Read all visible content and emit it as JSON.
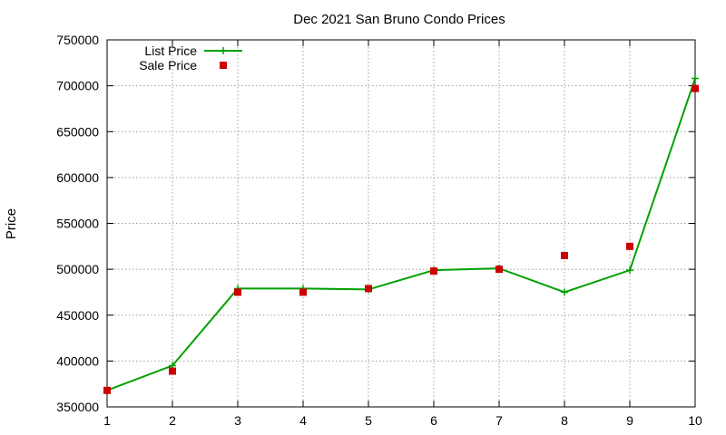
{
  "chart_data": {
    "type": "line",
    "title": "Dec 2021 San Bruno Condo Prices",
    "xlabel": "",
    "ylabel": "Price",
    "x": [
      1,
      2,
      3,
      4,
      5,
      6,
      7,
      8,
      9,
      10
    ],
    "xlim": [
      1,
      10
    ],
    "ylim": [
      350000,
      750000
    ],
    "xticks": [
      "1",
      "2",
      "3",
      "4",
      "5",
      "6",
      "7",
      "8",
      "9",
      "10"
    ],
    "yticks": [
      "350000",
      "400000",
      "450000",
      "500000",
      "550000",
      "600000",
      "650000",
      "700000",
      "750000"
    ],
    "grid": true,
    "legend_position": "top-left",
    "series": [
      {
        "name": "List Price",
        "kind": "line+cross",
        "color": "#00a000",
        "values": [
          368000,
          395000,
          479000,
          479000,
          478000,
          499000,
          501000,
          475000,
          499000,
          708000
        ]
      },
      {
        "name": "Sale Price",
        "kind": "square",
        "color": "#cc0000",
        "values": [
          368000,
          389000,
          475000,
          475000,
          479000,
          498000,
          500000,
          515000,
          525000,
          697000
        ]
      }
    ]
  }
}
